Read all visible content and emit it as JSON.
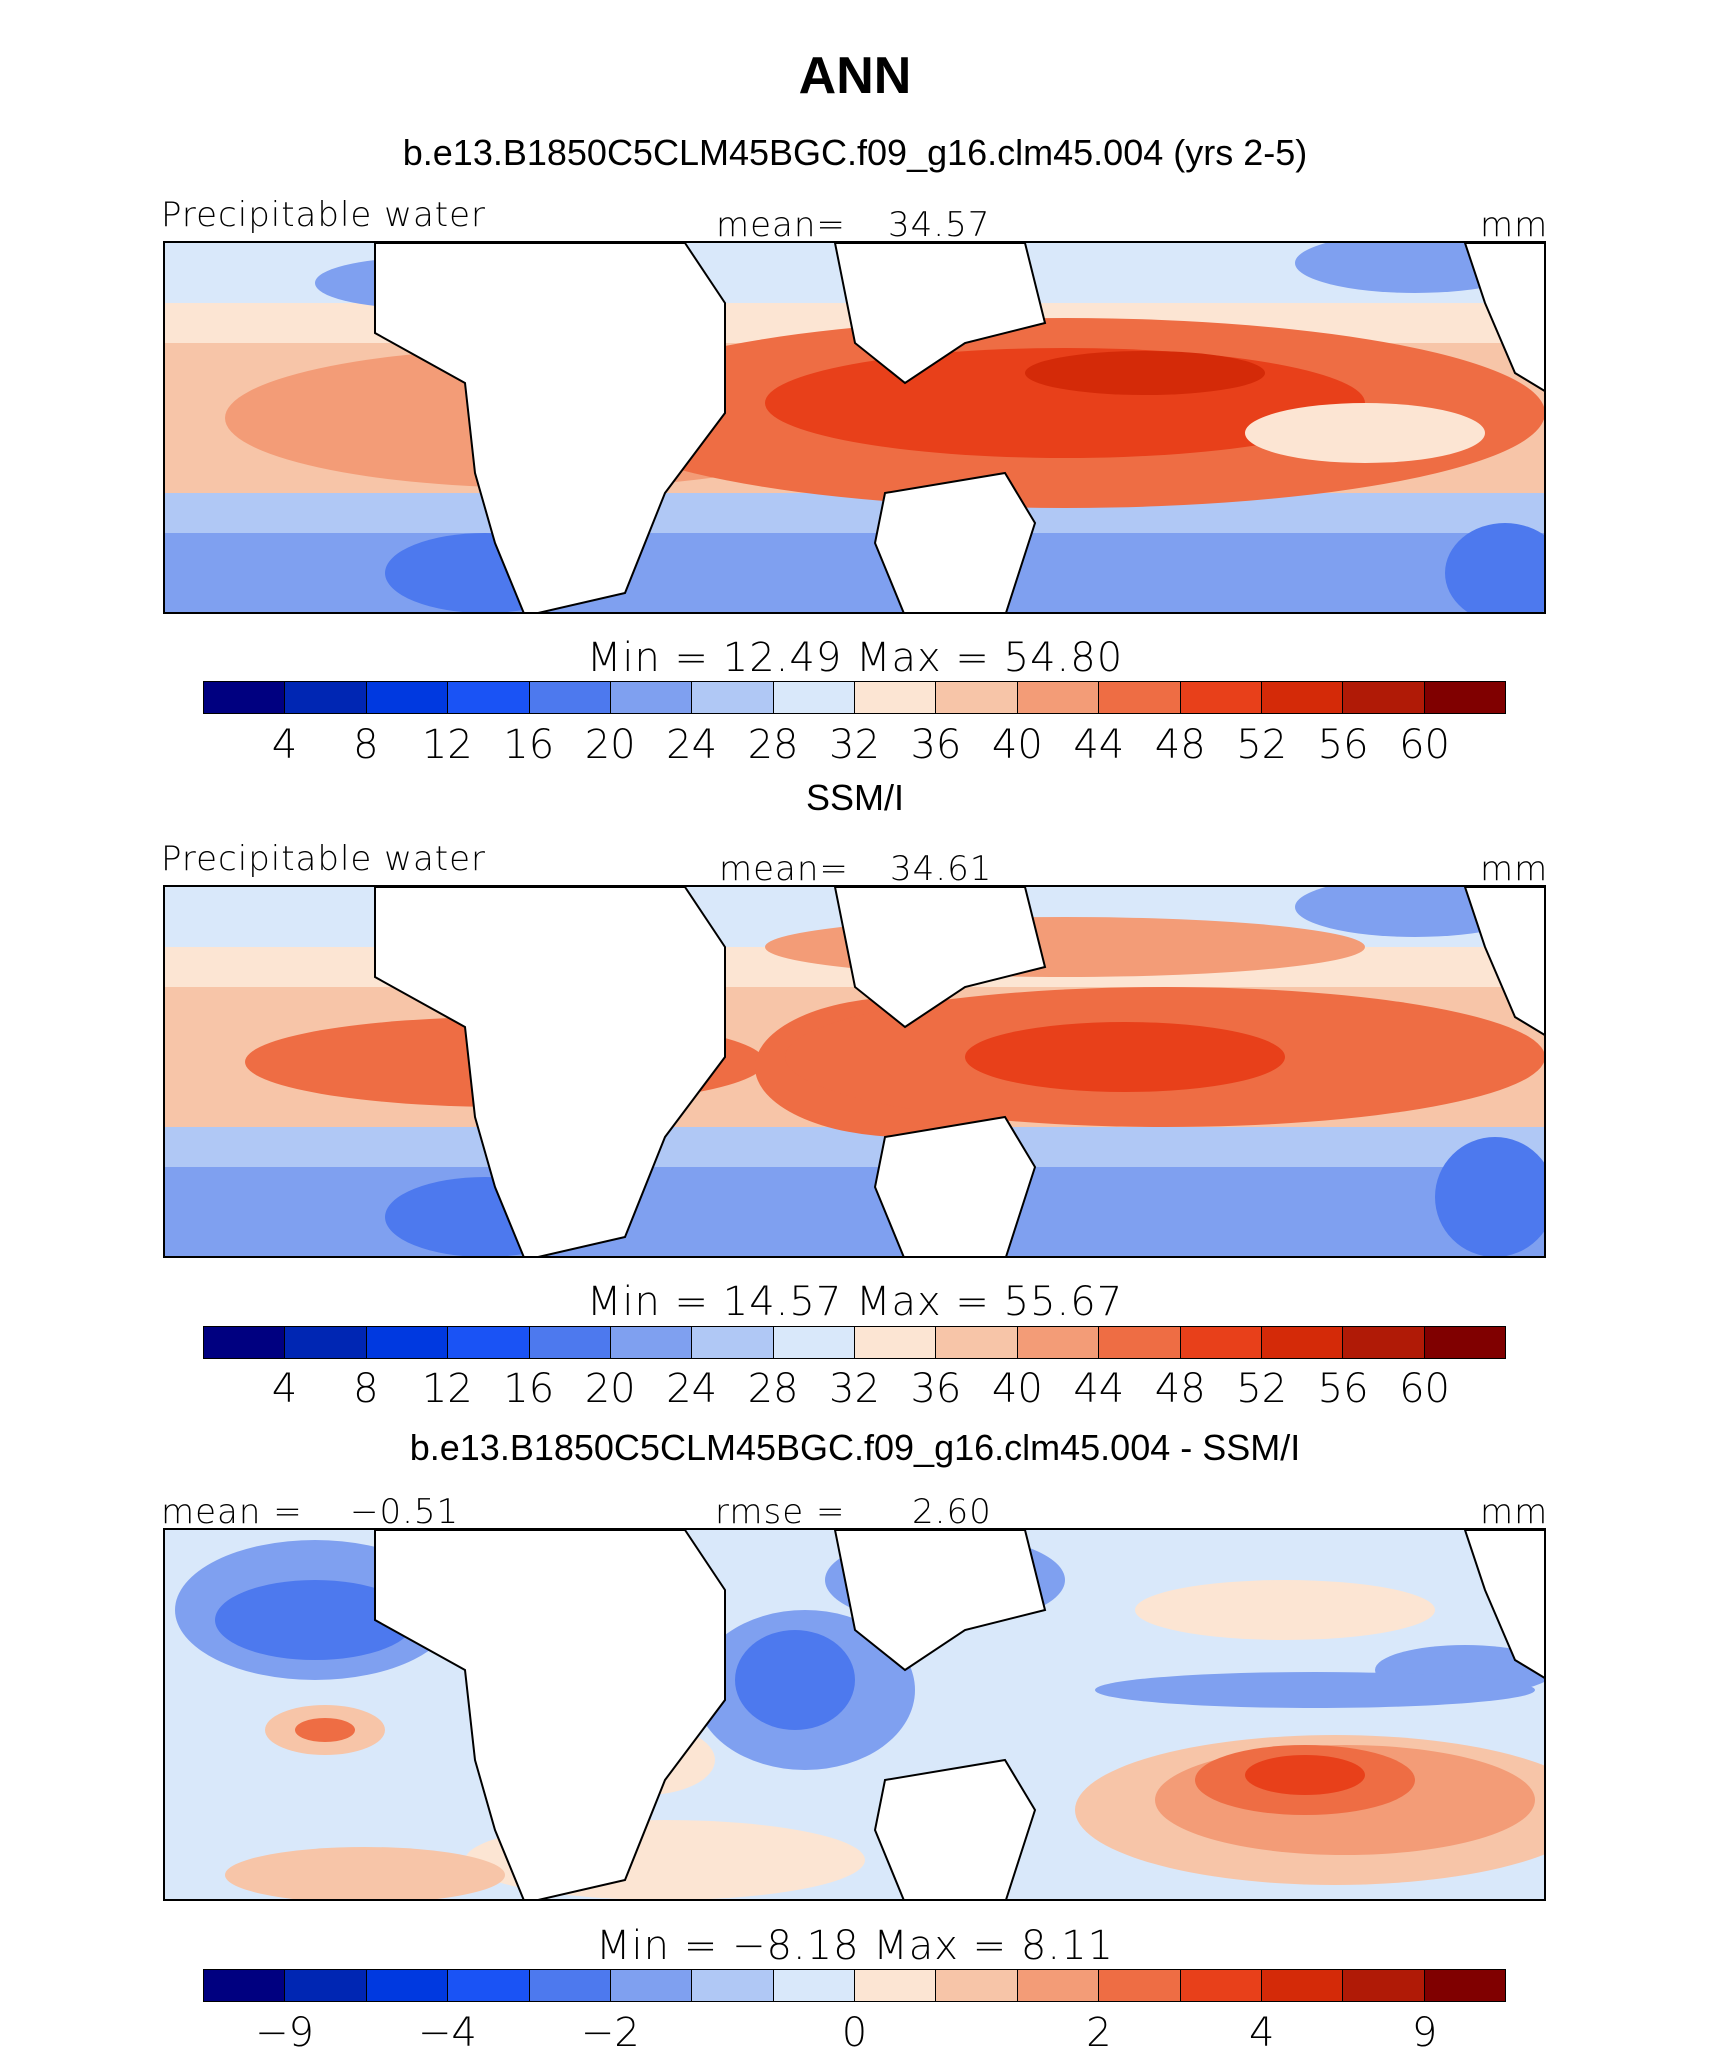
{
  "title": "ANN",
  "colors": [
    "#000080",
    "#0026b3",
    "#0039e0",
    "#1a53f5",
    "#4d79ee",
    "#7fa0f0",
    "#b0c8f5",
    "#d9e8fa",
    "#fce5d3",
    "#f7c5a8",
    "#f39c77",
    "#ee6d44",
    "#e8401a",
    "#d42a08",
    "#b01a06",
    "#800000"
  ],
  "chart_data": [
    {
      "type": "heatmap",
      "title": "b.e13.B1850C5CLM45BGC.f09_g16.clm45.004 (yrs 2-5)",
      "variable": "Precipitable water",
      "stat_label": "mean=",
      "stat_value": "34.57",
      "units": "mm",
      "min_label": "Min",
      "min_value": "12.49",
      "max_label": "Max",
      "max_value": "54.80",
      "colorbar_ticks": [
        "4",
        "8",
        "12",
        "16",
        "20",
        "24",
        "28",
        "32",
        "36",
        "40",
        "44",
        "48",
        "52",
        "56",
        "60"
      ]
    },
    {
      "type": "heatmap",
      "title": "SSM/I",
      "variable": "Precipitable water",
      "stat_label": "mean=",
      "stat_value": "34.61",
      "units": "mm",
      "min_label": "Min",
      "min_value": "14.57",
      "max_label": "Max",
      "max_value": "55.67",
      "colorbar_ticks": [
        "4",
        "8",
        "12",
        "16",
        "20",
        "24",
        "28",
        "32",
        "36",
        "40",
        "44",
        "48",
        "52",
        "56",
        "60"
      ]
    },
    {
      "type": "heatmap",
      "title": "b.e13.B1850C5CLM45BGC.f09_g16.clm45.004 - SSM/I",
      "mean_label": "mean =",
      "mean_value": "−0.51",
      "rmse_label": "rmse =",
      "rmse_value": "2.60",
      "units": "mm",
      "min_label": "Min",
      "min_value": "−8.18",
      "max_label": "Max",
      "max_value": "8.11",
      "colorbar_ticks": [
        "−9",
        "−4",
        "−2",
        "0",
        "2",
        "4",
        "9"
      ]
    }
  ]
}
